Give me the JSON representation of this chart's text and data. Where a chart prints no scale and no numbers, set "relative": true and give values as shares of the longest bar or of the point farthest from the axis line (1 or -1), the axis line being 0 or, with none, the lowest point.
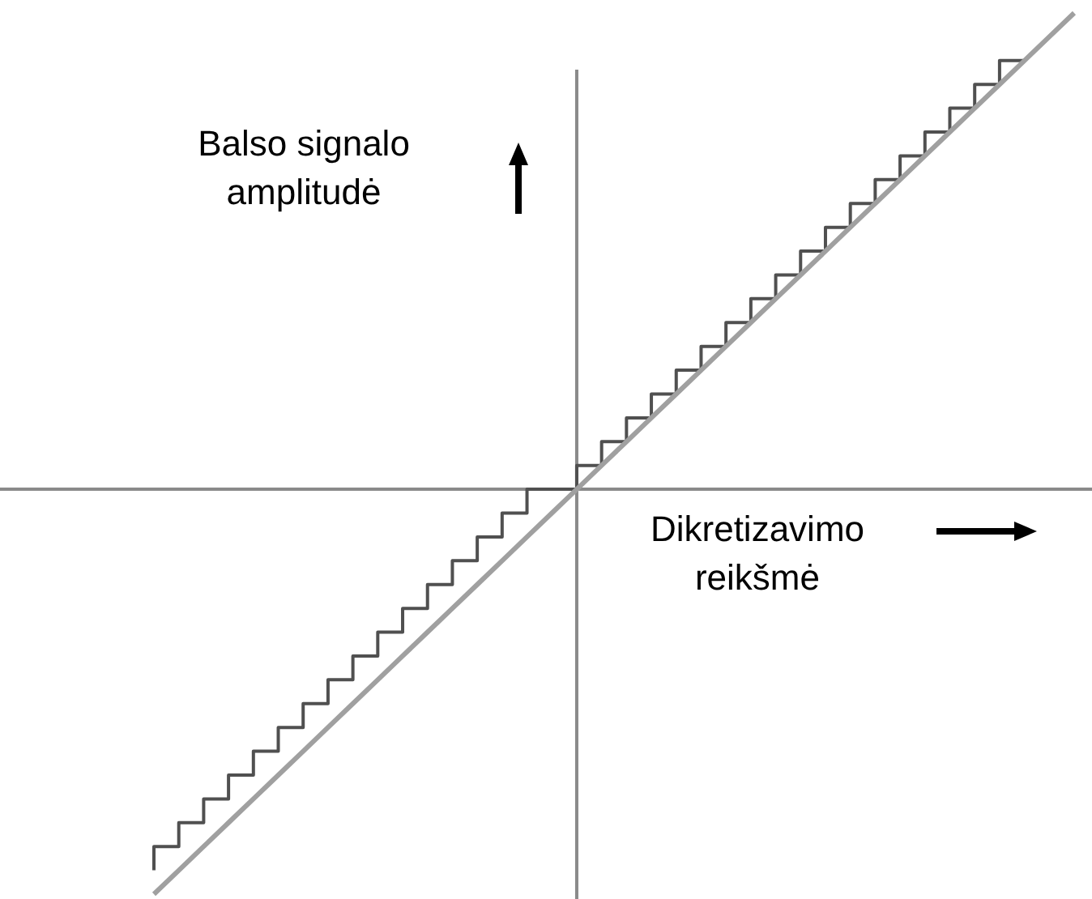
{
  "chart_data": {
    "type": "line",
    "relative": true,
    "xlabel": "Dikretizavimo reikšmė",
    "ylabel": "Balso signalo amplitudė",
    "grid": false,
    "legend": false,
    "tick_labels": false,
    "marker": "none",
    "categories": [
      null,
      null,
      null,
      null,
      null,
      null,
      null,
      null,
      null,
      null,
      null,
      null,
      null,
      null,
      null,
      null,
      null,
      null,
      null,
      null,
      null,
      null,
      null,
      null,
      null,
      null,
      null,
      null,
      null,
      null,
      null,
      null,
      null,
      null,
      null,
      null,
      null,
      null
    ],
    "series": [
      {
        "type": "line",
        "color": "#a0a0a0",
        "values": [
          -0.85,
          -0.8,
          -0.75,
          -0.7,
          -0.65,
          -0.6,
          -0.55,
          -0.5,
          -0.45,
          -0.4,
          -0.35,
          -0.3,
          -0.25,
          -0.2,
          -0.15,
          -0.1,
          -0.05,
          0,
          0.05,
          0.1,
          0.15,
          0.2,
          0.25,
          0.3,
          0.35,
          0.4,
          0.45,
          0.5,
          0.55,
          0.6,
          0.65,
          0.7,
          0.75,
          0.8,
          0.85,
          0.9,
          0.95,
          1
        ]
      },
      {
        "type": "step",
        "color": "#505050",
        "values": [
          -0.8,
          -0.75,
          -0.7,
          -0.65,
          -0.6,
          -0.55,
          -0.5,
          -0.45,
          -0.4,
          -0.35,
          -0.3,
          -0.25,
          -0.2,
          -0.15,
          -0.1,
          -0.05,
          0,
          0,
          0.05,
          0.1,
          0.15,
          0.2,
          0.25,
          0.3,
          0.35,
          0.4,
          0.45,
          0.5,
          0.55,
          0.6,
          0.65,
          0.7,
          0.75,
          0.8,
          0.85,
          0.9,
          null,
          null
        ]
      }
    ]
  }
}
